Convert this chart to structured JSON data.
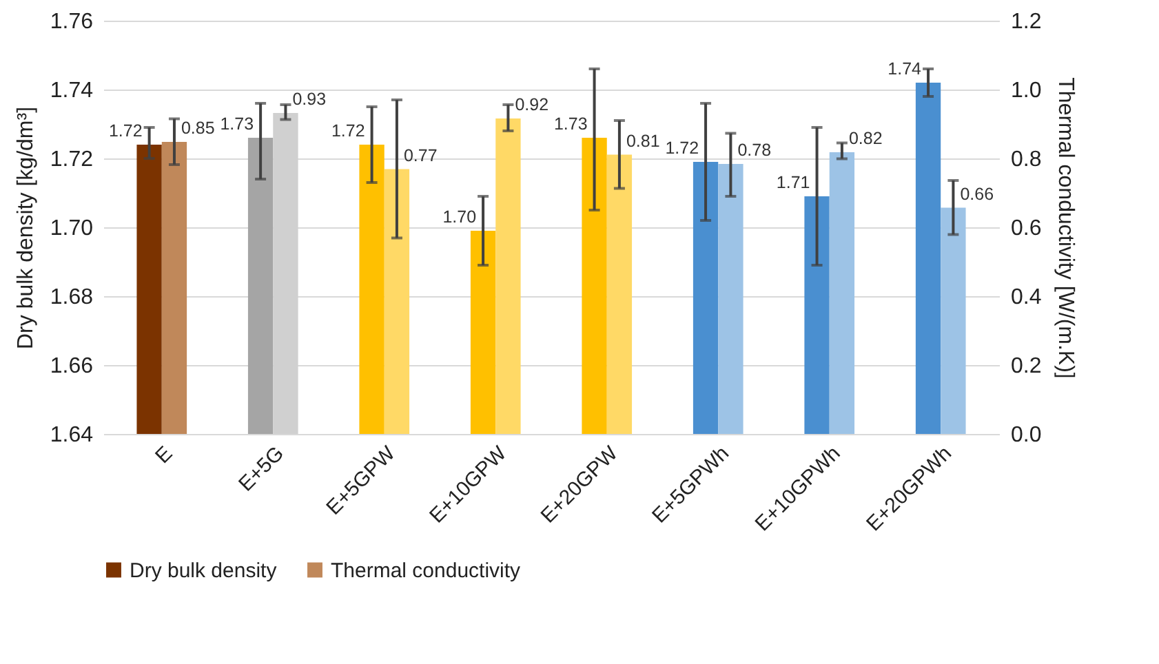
{
  "chart_data": {
    "type": "bar",
    "categories": [
      "E",
      "E+5G",
      "E+5GPW",
      "E+10GPW",
      "E+20GPW",
      "E+5GPWh",
      "E+10GPWh",
      "E+20GPWh"
    ],
    "ylabel": "Dry bulk density [kg/dm³]",
    "y2label": "Thermal conductivity [W/(m.K)]",
    "ylim": [
      1.64,
      1.76
    ],
    "yticks": [
      1.64,
      1.66,
      1.68,
      {
        "value": 1.7,
        "label": "1.70"
      },
      1.72,
      1.74,
      1.76
    ],
    "y2lim": [
      0,
      1.2
    ],
    "y2ticks": [
      {
        "value": 0,
        "label": "0.0"
      },
      0.2,
      0.4,
      0.6,
      0.8,
      {
        "value": 1,
        "label": "1.0"
      },
      1.2
    ],
    "grid": "y",
    "legend": "bottom",
    "series": [
      {
        "name": "Dry bulk density",
        "color": "#7b3300",
        "colors": [
          "#7b3300",
          "#a5a5a5",
          "#ffc000",
          "#ffc000",
          "#ffc000",
          "#4a8fd0",
          "#4a8fd0",
          "#4a8fd0"
        ],
        "values": [
          1.724,
          1.726,
          1.724,
          1.699,
          1.726,
          1.719,
          1.709,
          1.742
        ],
        "errors": [
          [
            1.72,
            1.729
          ],
          [
            1.714,
            1.736
          ],
          [
            1.713,
            1.735
          ],
          [
            1.689,
            1.709
          ],
          [
            1.705,
            1.746
          ],
          [
            1.702,
            1.736
          ],
          [
            1.689,
            1.729
          ],
          [
            1.738,
            1.746
          ]
        ],
        "value_labels": [
          "1.72",
          "1.73",
          "1.72",
          "1.70",
          "1.73",
          "1.72",
          "1.71",
          "1.74"
        ]
      },
      {
        "name": "Thermal conductivity",
        "axis": "y2",
        "color": "#c0885a",
        "colors": [
          "#c0885a",
          "#d0d0d0",
          "#ffd966",
          "#ffd966",
          "#ffd966",
          "#9dc3e6",
          "#9dc3e6",
          "#9dc3e6"
        ],
        "values": [
          0.848,
          0.932,
          0.769,
          0.916,
          0.811,
          0.784,
          0.818,
          0.657
        ],
        "errors": [
          [
            0.782,
            0.915
          ],
          [
            0.913,
            0.956
          ],
          [
            0.569,
            0.97
          ],
          [
            0.88,
            0.956
          ],
          [
            0.713,
            0.91
          ],
          [
            0.69,
            0.873
          ],
          [
            0.799,
            0.845
          ],
          [
            0.579,
            0.736
          ]
        ],
        "value_labels": [
          "0.85",
          "0.93",
          "0.77",
          "0.92",
          "0.81",
          "0.78",
          "0.82",
          "0.66"
        ]
      }
    ]
  }
}
